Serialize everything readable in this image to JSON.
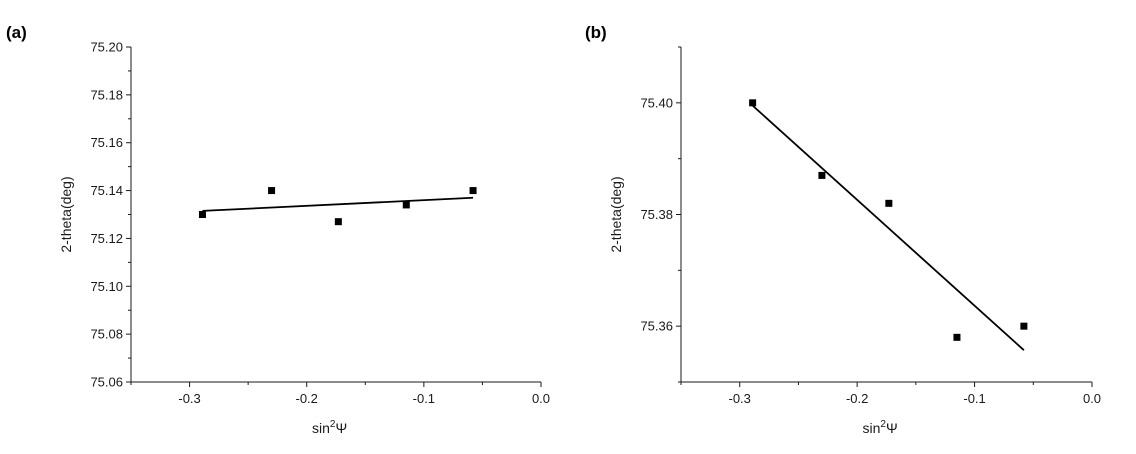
{
  "chart_data": [
    {
      "type": "scatter",
      "panel_label": "(a)",
      "xlabel_base": "sin",
      "xlabel_sup": "2",
      "xlabel_tail": "Ψ",
      "ylabel": "2-theta(deg)",
      "xlim": [
        -0.35,
        0.0
      ],
      "ylim": [
        75.06,
        75.2
      ],
      "xticks": [
        -0.3,
        -0.2,
        -0.1,
        0.0
      ],
      "xtick_labels": [
        "-0.3",
        "-0.2",
        "-0.1",
        "0.0"
      ],
      "yticks": [
        75.06,
        75.08,
        75.1,
        75.12,
        75.14,
        75.16,
        75.18,
        75.2
      ],
      "ytick_labels": [
        "75.06",
        "75.08",
        "75.10",
        "75.12",
        "75.14",
        "75.16",
        "75.18",
        "75.20"
      ],
      "grid": false,
      "series": [
        {
          "type": "scatter",
          "marker": "square",
          "x": [
            -0.289,
            -0.23,
            -0.173,
            -0.115,
            -0.058
          ],
          "y": [
            75.13,
            75.14,
            75.127,
            75.134,
            75.14
          ]
        },
        {
          "type": "line",
          "fit": "linear",
          "x": [
            -0.289,
            -0.058
          ],
          "y": [
            75.1315,
            75.137
          ]
        }
      ]
    },
    {
      "type": "scatter",
      "panel_label": "(b)",
      "xlabel_base": "sin",
      "xlabel_sup": "2",
      "xlabel_tail": "Ψ",
      "ylabel": "2-theta(deg)",
      "xlim": [
        -0.35,
        0.0
      ],
      "ylim": [
        75.35,
        75.41
      ],
      "xticks": [
        -0.3,
        -0.2,
        -0.1,
        0.0
      ],
      "xtick_labels": [
        "-0.3",
        "-0.2",
        "-0.1",
        "0.0"
      ],
      "yticks": [
        75.36,
        75.38,
        75.4
      ],
      "ytick_labels": [
        "75.36",
        "75.38",
        "75.40"
      ],
      "grid": false,
      "series": [
        {
          "type": "scatter",
          "marker": "square",
          "x": [
            -0.289,
            -0.23,
            -0.173,
            -0.115,
            -0.058
          ],
          "y": [
            75.4,
            75.387,
            75.382,
            75.358,
            75.36
          ]
        },
        {
          "type": "line",
          "fit": "linear",
          "x": [
            -0.289,
            -0.058
          ],
          "y": [
            75.3995,
            75.3557
          ]
        }
      ]
    }
  ],
  "colors": {
    "axis": "#1a1a1a",
    "marker": "#000000",
    "fit_line": "#000000"
  }
}
